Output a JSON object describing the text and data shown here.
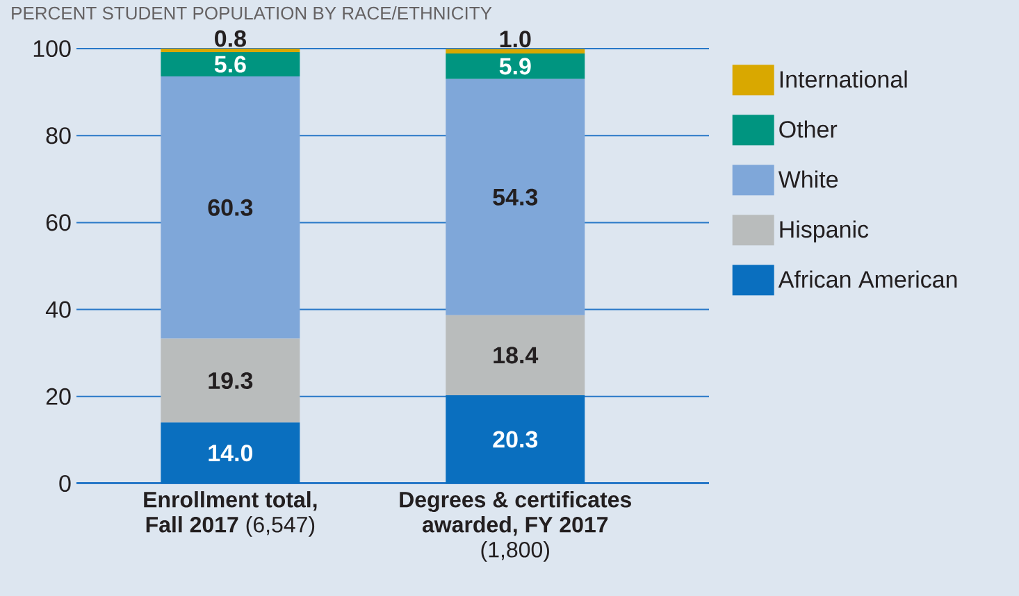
{
  "chart_data": {
    "type": "bar",
    "stacked": true,
    "title": "PERCENT STUDENT POPULATION BY RACE/ETHNICITY",
    "categories": [
      "**Enrollment total, Fall 2017** (6,547)",
      "**Degrees & certificates awarded, FY 2017** (1,800)"
    ],
    "series": [
      {
        "name": "African American",
        "color": "#0a6fbf",
        "values": [
          14.0,
          20.3
        ],
        "value_labels": [
          "14.0",
          "20.3"
        ]
      },
      {
        "name": "Hispanic",
        "color": "#b9bcbc",
        "values": [
          19.3,
          18.4
        ],
        "value_labels": [
          "19.3",
          "18.4"
        ]
      },
      {
        "name": "White",
        "color": "#7fa7d9",
        "values": [
          60.3,
          54.3
        ],
        "value_labels": [
          "60.3",
          "54.3"
        ]
      },
      {
        "name": "Other",
        "color": "#009580",
        "values": [
          5.6,
          5.9
        ],
        "value_labels": [
          "5.6",
          "5.9"
        ]
      },
      {
        "name": "International",
        "color": "#d9a800",
        "values": [
          0.8,
          1.0
        ],
        "value_labels": [
          "0.8",
          "1.0"
        ]
      }
    ],
    "ylim": [
      0,
      100
    ],
    "yticks": [
      0,
      20,
      40,
      60,
      80,
      100
    ],
    "grid": "y",
    "legend": "right"
  }
}
